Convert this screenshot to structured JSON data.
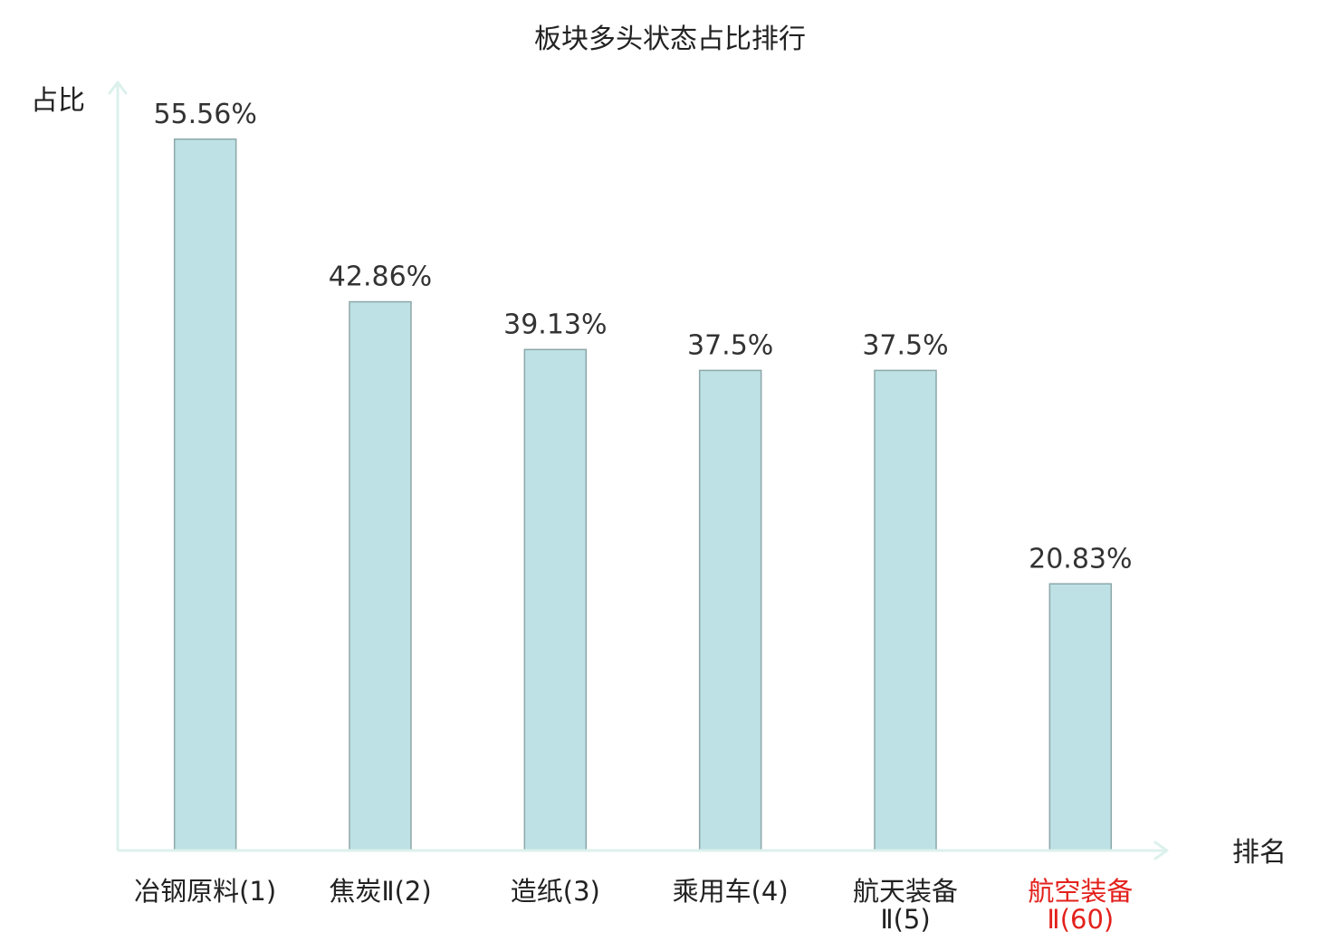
{
  "chart_data": {
    "type": "bar",
    "title": "板块多头状态占比排行",
    "ylabel": "占比",
    "xlabel": "排名",
    "categories": [
      "冶钢原料(1)",
      "焦炭Ⅱ(2)",
      "造纸(3)",
      "乘用车(4)",
      "航天装备Ⅱ(5)",
      "航空装备Ⅱ(60)"
    ],
    "values": [
      55.56,
      42.86,
      39.13,
      37.5,
      37.5,
      20.83
    ],
    "value_labels": [
      "55.56%",
      "42.86%",
      "39.13%",
      "37.5%",
      "37.5%",
      "20.83%"
    ],
    "ylim": [
      0,
      60
    ],
    "grid": false,
    "colors": {
      "bar_fill": "#bde1e4",
      "bar_edge": "#8da7a9",
      "axis": "#dcf1ec",
      "value_text": "#333333"
    },
    "tick_label_colors": [
      "#222222",
      "#222222",
      "#222222",
      "#222222",
      "#222222",
      "#e3211c"
    ]
  }
}
